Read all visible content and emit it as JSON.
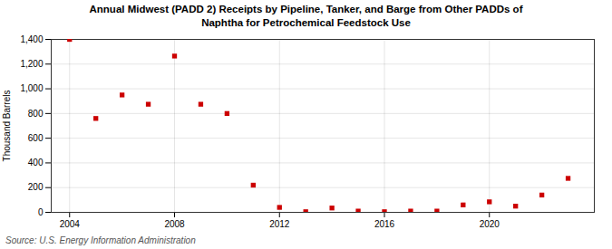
{
  "chart_data": {
    "type": "scatter",
    "title": "Annual Midwest (PADD 2) Receipts by Pipeline, Tanker, and Barge from Other PADDs of\nNaphtha for Petrochemical Feedstock Use",
    "ylabel": "Thousand Barrels",
    "source": "Source: U.S. Energy Information Administration",
    "x": [
      2004,
      2005,
      2006,
      2007,
      2008,
      2009,
      2010,
      2011,
      2012,
      2013,
      2014,
      2015,
      2016,
      2017,
      2018,
      2019,
      2020,
      2021,
      2022,
      2023
    ],
    "values": [
      1400,
      760,
      950,
      875,
      1265,
      875,
      800,
      220,
      40,
      5,
      35,
      10,
      5,
      10,
      10,
      60,
      85,
      50,
      140,
      275
    ],
    "color": "#cc0000",
    "marker": "square",
    "xlim": [
      2003.3,
      2024.0
    ],
    "ylim": [
      0,
      1400
    ],
    "xticks": [
      2004,
      2008,
      2012,
      2016,
      2020
    ],
    "yticks": [
      0,
      200,
      400,
      600,
      800,
      {
        "value": 1000,
        "label": "1,000"
      },
      {
        "value": 1200,
        "label": "1,200"
      },
      {
        "value": 1400,
        "label": "1,400"
      }
    ],
    "grid": true
  }
}
